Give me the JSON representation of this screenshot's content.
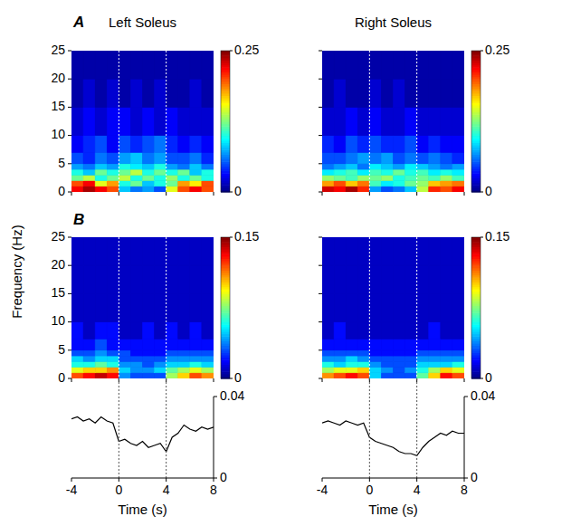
{
  "chart_data": [
    {
      "type": "heatmap",
      "panel": "A",
      "title": "Left Soleus",
      "ylabel": "Frequency (Hz)",
      "xlim": [
        -4,
        8
      ],
      "ylim": [
        0,
        25
      ],
      "xticks": [
        -4,
        0,
        4,
        8
      ],
      "yticks": [
        0,
        5,
        10,
        15,
        20,
        25
      ],
      "tick_labels": "y",
      "events": [
        0,
        4
      ],
      "x_edges": [
        -4,
        -3,
        -2,
        -1,
        0,
        1,
        2,
        3,
        4,
        5,
        6,
        7,
        8
      ],
      "y_edges": [
        0,
        1,
        2,
        3,
        4,
        5,
        7,
        10,
        15,
        20,
        25
      ],
      "cells": [
        [
          0.22,
          0.24,
          0.22,
          0.2,
          0.08,
          0.06,
          0.07,
          0.05,
          0.15,
          0.2,
          0.22,
          0.2
        ],
        [
          0.2,
          0.22,
          0.15,
          0.18,
          0.1,
          0.12,
          0.08,
          0.1,
          0.12,
          0.18,
          0.16,
          0.2
        ],
        [
          0.12,
          0.14,
          0.1,
          0.12,
          0.14,
          0.1,
          0.12,
          0.1,
          0.13,
          0.1,
          0.12,
          0.1
        ],
        [
          0.1,
          0.08,
          0.12,
          0.1,
          0.12,
          0.14,
          0.1,
          0.12,
          0.1,
          0.12,
          0.08,
          0.1
        ],
        [
          0.07,
          0.06,
          0.08,
          0.07,
          0.1,
          0.09,
          0.08,
          0.1,
          0.07,
          0.06,
          0.08,
          0.06
        ],
        [
          0.05,
          0.04,
          0.06,
          0.05,
          0.07,
          0.08,
          0.06,
          0.07,
          0.05,
          0.05,
          0.06,
          0.04
        ],
        [
          0.03,
          0.04,
          0.05,
          0.03,
          0.05,
          0.04,
          0.05,
          0.06,
          0.04,
          0.03,
          0.04,
          0.03
        ],
        [
          0.02,
          0.03,
          0.02,
          0.03,
          0.03,
          0.02,
          0.03,
          0.02,
          0.03,
          0.02,
          0.02,
          0.02
        ],
        [
          0.01,
          0.02,
          0.01,
          0.02,
          0.01,
          0.02,
          0.01,
          0.02,
          0.01,
          0.01,
          0.02,
          0.01
        ],
        [
          0.01,
          0.01,
          0.01,
          0.01,
          0.01,
          0.01,
          0.01,
          0.01,
          0.01,
          0.01,
          0.01,
          0.01
        ]
      ],
      "colorbar": {
        "range": [
          0,
          0.25
        ],
        "ticks": [
          0,
          0.25
        ]
      }
    },
    {
      "type": "heatmap",
      "title": "Right Soleus",
      "xlim": [
        -4,
        8
      ],
      "ylim": [
        0,
        25
      ],
      "xticks": [
        -4,
        0,
        4,
        8
      ],
      "yticks": [
        0,
        5,
        10,
        15,
        20,
        25
      ],
      "tick_labels": false,
      "events": [
        0,
        4
      ],
      "x_edges": [
        -4,
        -3,
        -2,
        -1,
        0,
        1,
        2,
        3,
        4,
        5,
        6,
        7,
        8
      ],
      "y_edges": [
        0,
        1,
        2,
        3,
        4,
        5,
        7,
        10,
        15,
        20,
        25
      ],
      "cells": [
        [
          0.23,
          0.22,
          0.24,
          0.21,
          0.07,
          0.05,
          0.06,
          0.08,
          0.14,
          0.21,
          0.2,
          0.22
        ],
        [
          0.18,
          0.2,
          0.17,
          0.19,
          0.11,
          0.09,
          0.1,
          0.12,
          0.13,
          0.17,
          0.18,
          0.19
        ],
        [
          0.13,
          0.12,
          0.11,
          0.13,
          0.12,
          0.13,
          0.1,
          0.11,
          0.12,
          0.11,
          0.13,
          0.11
        ],
        [
          0.09,
          0.1,
          0.11,
          0.09,
          0.11,
          0.1,
          0.12,
          0.1,
          0.11,
          0.09,
          0.1,
          0.09
        ],
        [
          0.06,
          0.07,
          0.08,
          0.06,
          0.09,
          0.08,
          0.07,
          0.09,
          0.08,
          0.07,
          0.06,
          0.07
        ],
        [
          0.05,
          0.05,
          0.06,
          0.07,
          0.06,
          0.07,
          0.05,
          0.06,
          0.05,
          0.06,
          0.05,
          0.04
        ],
        [
          0.04,
          0.03,
          0.05,
          0.04,
          0.05,
          0.04,
          0.04,
          0.05,
          0.03,
          0.04,
          0.03,
          0.03
        ],
        [
          0.02,
          0.02,
          0.03,
          0.02,
          0.03,
          0.02,
          0.02,
          0.03,
          0.02,
          0.02,
          0.02,
          0.02
        ],
        [
          0.01,
          0.02,
          0.01,
          0.01,
          0.02,
          0.01,
          0.02,
          0.01,
          0.01,
          0.01,
          0.01,
          0.01
        ],
        [
          0.01,
          0.01,
          0.01,
          0.01,
          0.01,
          0.01,
          0.01,
          0.01,
          0.01,
          0.01,
          0.01,
          0.01
        ]
      ],
      "colorbar": {
        "range": [
          0,
          0.25
        ],
        "ticks": [
          0,
          0.25
        ]
      }
    },
    {
      "type": "heatmap",
      "panel": "B",
      "xlim": [
        -4,
        8
      ],
      "ylim": [
        0,
        25
      ],
      "xticks": [
        -4,
        0,
        4,
        8
      ],
      "yticks": [
        0,
        5,
        10,
        15,
        20,
        25
      ],
      "tick_labels": "y",
      "events": [
        0,
        4
      ],
      "x_edges": [
        -4,
        -3,
        -2,
        -1,
        0,
        1,
        2,
        3,
        4,
        5,
        6,
        7,
        8
      ],
      "y_edges": [
        0,
        1,
        2,
        3,
        4,
        5,
        7,
        10,
        15,
        20,
        25
      ],
      "cells": [
        [
          0.12,
          0.13,
          0.14,
          0.13,
          0.04,
          0.03,
          0.03,
          0.03,
          0.08,
          0.1,
          0.12,
          0.11
        ],
        [
          0.09,
          0.1,
          0.1,
          0.11,
          0.05,
          0.04,
          0.04,
          0.05,
          0.07,
          0.08,
          0.09,
          0.08
        ],
        [
          0.06,
          0.06,
          0.07,
          0.06,
          0.04,
          0.04,
          0.03,
          0.04,
          0.05,
          0.05,
          0.06,
          0.05
        ],
        [
          0.05,
          0.04,
          0.05,
          0.05,
          0.03,
          0.03,
          0.03,
          0.03,
          0.04,
          0.04,
          0.04,
          0.04
        ],
        [
          0.03,
          0.03,
          0.04,
          0.03,
          0.03,
          0.02,
          0.02,
          0.02,
          0.03,
          0.03,
          0.03,
          0.03
        ],
        [
          0.02,
          0.02,
          0.03,
          0.02,
          0.02,
          0.02,
          0.02,
          0.02,
          0.02,
          0.02,
          0.02,
          0.02
        ],
        [
          0.02,
          0.01,
          0.02,
          0.02,
          0.01,
          0.01,
          0.02,
          0.01,
          0.02,
          0.01,
          0.02,
          0.01
        ],
        [
          0.01,
          0.01,
          0.01,
          0.01,
          0.01,
          0.01,
          0.01,
          0.01,
          0.01,
          0.01,
          0.01,
          0.01
        ],
        [
          0.01,
          0.01,
          0.01,
          0.01,
          0.01,
          0.01,
          0.01,
          0.01,
          0.01,
          0.01,
          0.01,
          0.01
        ],
        [
          0.01,
          0.01,
          0.01,
          0.01,
          0.01,
          0.01,
          0.01,
          0.01,
          0.01,
          0.01,
          0.01,
          0.01
        ]
      ],
      "colorbar": {
        "range": [
          0,
          0.15
        ],
        "ticks": [
          0,
          0.15
        ]
      }
    },
    {
      "type": "heatmap",
      "xlim": [
        -4,
        8
      ],
      "ylim": [
        0,
        25
      ],
      "xticks": [
        -4,
        0,
        4,
        8
      ],
      "yticks": [
        0,
        5,
        10,
        15,
        20,
        25
      ],
      "tick_labels": false,
      "events": [
        0,
        4
      ],
      "x_edges": [
        -4,
        -3,
        -2,
        -1,
        0,
        1,
        2,
        3,
        4,
        5,
        6,
        7,
        8
      ],
      "y_edges": [
        0,
        1,
        2,
        3,
        4,
        5,
        7,
        10,
        15,
        20,
        25
      ],
      "cells": [
        [
          0.11,
          0.12,
          0.13,
          0.12,
          0.05,
          0.03,
          0.03,
          0.03,
          0.07,
          0.1,
          0.13,
          0.12
        ],
        [
          0.08,
          0.09,
          0.09,
          0.1,
          0.05,
          0.04,
          0.03,
          0.04,
          0.06,
          0.08,
          0.1,
          0.09
        ],
        [
          0.06,
          0.05,
          0.06,
          0.06,
          0.04,
          0.03,
          0.03,
          0.03,
          0.05,
          0.05,
          0.05,
          0.06
        ],
        [
          0.04,
          0.04,
          0.05,
          0.04,
          0.03,
          0.03,
          0.03,
          0.03,
          0.04,
          0.04,
          0.04,
          0.04
        ],
        [
          0.03,
          0.03,
          0.03,
          0.03,
          0.02,
          0.02,
          0.02,
          0.02,
          0.03,
          0.03,
          0.03,
          0.03
        ],
        [
          0.02,
          0.02,
          0.02,
          0.02,
          0.02,
          0.02,
          0.02,
          0.02,
          0.02,
          0.02,
          0.02,
          0.02
        ],
        [
          0.01,
          0.02,
          0.01,
          0.01,
          0.01,
          0.01,
          0.01,
          0.01,
          0.01,
          0.02,
          0.01,
          0.01
        ],
        [
          0.01,
          0.01,
          0.01,
          0.01,
          0.01,
          0.01,
          0.01,
          0.01,
          0.01,
          0.01,
          0.01,
          0.01
        ],
        [
          0.01,
          0.01,
          0.01,
          0.01,
          0.01,
          0.01,
          0.01,
          0.01,
          0.01,
          0.01,
          0.01,
          0.01
        ],
        [
          0.01,
          0.01,
          0.01,
          0.01,
          0.01,
          0.01,
          0.01,
          0.01,
          0.01,
          0.01,
          0.01,
          0.01
        ]
      ],
      "colorbar": {
        "range": [
          0,
          0.15
        ],
        "ticks": [
          0,
          0.15
        ]
      }
    },
    {
      "type": "line",
      "xlabel": "Time (s)",
      "color": "#000000",
      "xlim": [
        -4,
        8
      ],
      "ylim": [
        0,
        0.04
      ],
      "xticks": [
        -4,
        0,
        4,
        8
      ],
      "yticks": [
        0,
        0.04
      ],
      "tick_labels": true,
      "events": [
        0,
        4
      ],
      "x": [
        -4,
        -3.5,
        -3,
        -2.5,
        -2,
        -1.5,
        -1,
        -0.5,
        0,
        0.5,
        1,
        1.5,
        2,
        2.5,
        3,
        3.5,
        4,
        4.5,
        5,
        5.5,
        6,
        6.5,
        7,
        7.5,
        8
      ],
      "values": [
        0.029,
        0.03,
        0.028,
        0.029,
        0.027,
        0.03,
        0.028,
        0.027,
        0.018,
        0.019,
        0.017,
        0.016,
        0.018,
        0.015,
        0.016,
        0.017,
        0.013,
        0.02,
        0.022,
        0.026,
        0.024,
        0.023,
        0.025,
        0.024,
        0.025
      ]
    },
    {
      "type": "line",
      "xlabel": "Time (s)",
      "color": "#000000",
      "xlim": [
        -4,
        8
      ],
      "ylim": [
        0,
        0.04
      ],
      "xticks": [
        -4,
        0,
        4,
        8
      ],
      "yticks": [
        0,
        0.04
      ],
      "tick_labels": true,
      "events": [
        0,
        4
      ],
      "x": [
        -4,
        -3.5,
        -3,
        -2.5,
        -2,
        -1.5,
        -1,
        -0.5,
        0,
        0.5,
        1,
        1.5,
        2,
        2.5,
        3,
        3.5,
        4,
        4.5,
        5,
        5.5,
        6,
        6.5,
        7,
        7.5,
        8
      ],
      "values": [
        0.027,
        0.028,
        0.027,
        0.026,
        0.028,
        0.027,
        0.026,
        0.027,
        0.02,
        0.018,
        0.017,
        0.016,
        0.015,
        0.013,
        0.012,
        0.012,
        0.011,
        0.015,
        0.018,
        0.02,
        0.022,
        0.021,
        0.023,
        0.022,
        0.022
      ]
    }
  ]
}
